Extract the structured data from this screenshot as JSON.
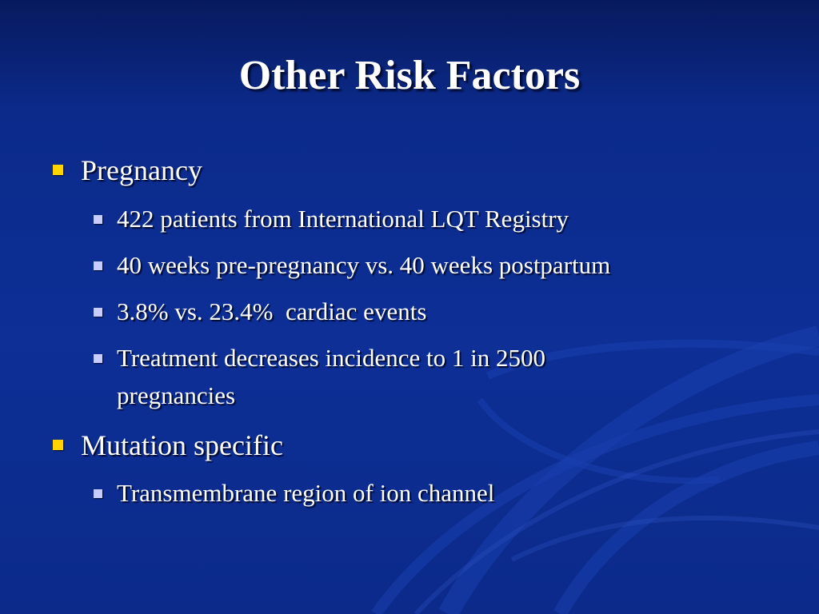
{
  "slide": {
    "title": "Other Risk Factors",
    "colors": {
      "background": "#0d2f96",
      "text": "#ffffff",
      "bullet_level1": "#ffd400",
      "bullet_level2": "#c8ccff"
    },
    "bullets": [
      {
        "text": "Pregnancy",
        "bullet_icon": "yellow-square-bullet-icon",
        "sub": [
          {
            "text": "422 patients from International LQT Registry",
            "bullet_icon": "lilac-square-bullet-icon"
          },
          {
            "text": "40 weeks pre-pregnancy vs. 40 weeks postpartum",
            "bullet_icon": "lilac-square-bullet-icon"
          },
          {
            "text": "3.8% vs. 23.4%  cardiac events",
            "bullet_icon": "lilac-square-bullet-icon"
          },
          {
            "text_line1": "Treatment decreases incidence to 1 in 2500",
            "text_line2": "pregnancies",
            "bullet_icon": "lilac-square-bullet-icon"
          }
        ]
      },
      {
        "text": "Mutation specific",
        "bullet_icon": "yellow-square-bullet-icon",
        "sub": [
          {
            "text": "Transmembrane region of ion channel",
            "bullet_icon": "lilac-square-bullet-icon"
          }
        ]
      }
    ]
  }
}
